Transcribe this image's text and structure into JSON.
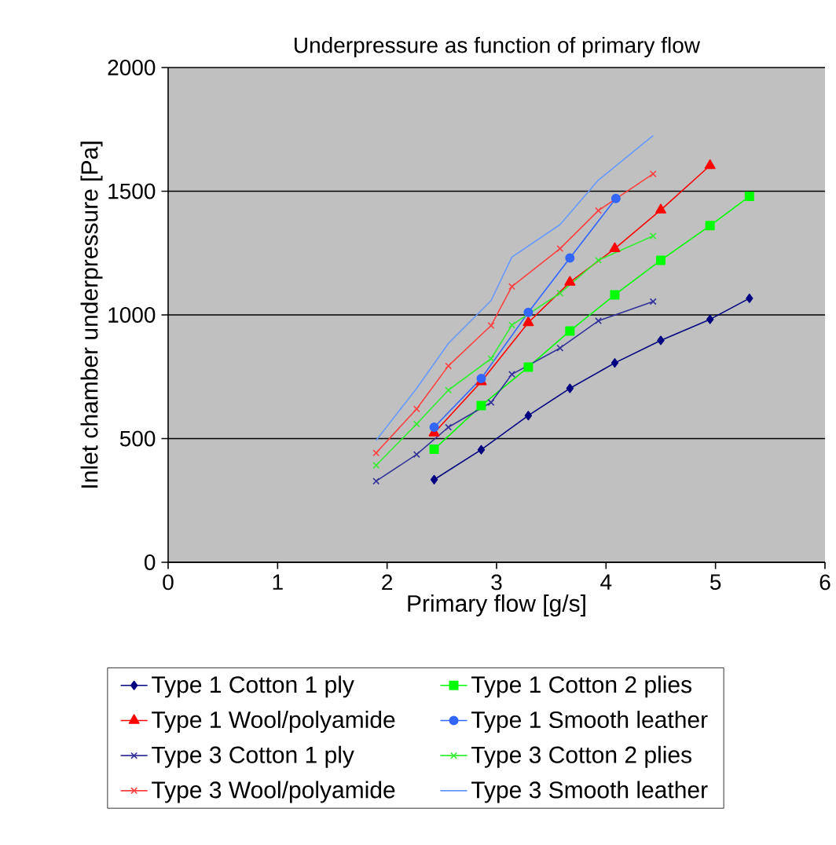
{
  "chart_data": {
    "type": "line",
    "title": "Underpressure as function of primary flow",
    "xlabel": "Primary flow [g/s]",
    "ylabel": "Inlet chamber underpressure [Pa]",
    "xlim": [
      0,
      6
    ],
    "xticks": [
      0,
      1,
      2,
      3,
      4,
      5,
      6
    ],
    "ylim": [
      0,
      2000
    ],
    "yticks": [
      0,
      500,
      1000,
      1500,
      2000
    ],
    "grid": "y",
    "legend": "bottom",
    "series": [
      {
        "name": "Type 1 Cotton 1 ply",
        "color": "#000080",
        "marker": "diamond",
        "x": [
          2.43,
          2.86,
          3.29,
          3.67,
          4.08,
          4.5,
          4.95,
          5.31
        ],
        "values": [
          334,
          455,
          593,
          703,
          806,
          897,
          982,
          1067
        ]
      },
      {
        "name": "Type 1 Cotton 2 plies",
        "color": "#00ff00",
        "marker": "square",
        "x": [
          2.43,
          2.86,
          3.29,
          3.67,
          4.08,
          4.5,
          4.95,
          5.31
        ],
        "values": [
          457,
          633,
          789,
          935,
          1081,
          1221,
          1361,
          1479
        ]
      },
      {
        "name": "Type 1 Wool/polyamide",
        "color": "#ff0000",
        "marker": "triangle",
        "x": [
          2.43,
          2.86,
          3.29,
          3.67,
          4.08,
          4.5,
          4.95
        ],
        "values": [
          523,
          730,
          969,
          1132,
          1268,
          1424,
          1604
        ]
      },
      {
        "name": "Type 1 Smooth leather",
        "color": "#3366ff",
        "marker": "circle",
        "x": [
          2.43,
          2.86,
          3.29,
          3.67,
          4.09
        ],
        "values": [
          546,
          743,
          1010,
          1230,
          1471
        ]
      },
      {
        "name": "Type 3 Cotton 1 ply",
        "color": "#333399",
        "marker": "cross",
        "x": [
          1.9,
          2.27,
          2.56,
          2.95,
          3.14,
          3.58,
          3.93,
          4.43
        ],
        "values": [
          328,
          436,
          546,
          646,
          760,
          866,
          976,
          1054
        ]
      },
      {
        "name": "Type 3 Cotton 2 plies",
        "color": "#33ee33",
        "marker": "cross",
        "x": [
          1.9,
          2.27,
          2.56,
          2.95,
          3.14,
          3.58,
          3.93,
          4.43
        ],
        "values": [
          392,
          559,
          696,
          823,
          959,
          1088,
          1221,
          1319
        ]
      },
      {
        "name": "Type 3 Wool/polyamide",
        "color": "#ff4040",
        "marker": "cross",
        "x": [
          1.9,
          2.27,
          2.56,
          2.95,
          3.14,
          3.58,
          3.93,
          4.43
        ],
        "values": [
          442,
          620,
          794,
          957,
          1115,
          1268,
          1422,
          1570
        ]
      },
      {
        "name": "Type 3 Smooth leather",
        "color": "#6699ff",
        "marker": "none",
        "x": [
          1.9,
          2.27,
          2.56,
          2.95,
          3.14,
          3.58,
          3.93,
          4.43
        ],
        "values": [
          493,
          703,
          885,
          1058,
          1234,
          1365,
          1545,
          1725
        ]
      }
    ]
  }
}
